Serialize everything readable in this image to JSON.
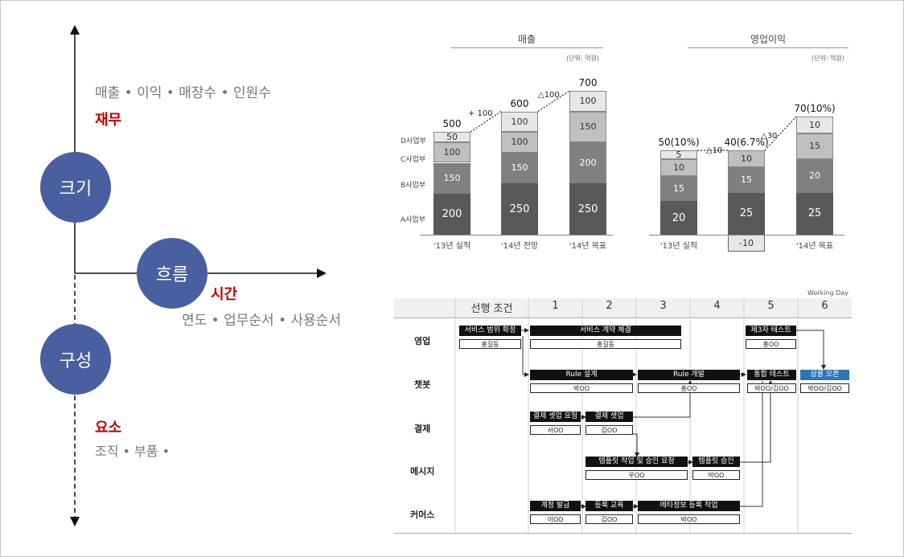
{
  "left": {
    "circles": [
      "크기",
      "흐름",
      "구성"
    ],
    "size_desc": "매출 • 이익 • 매장수 • 인원수",
    "size_label": "재무",
    "flow_label": "시간",
    "flow_desc": "연도 • 업무순서 • 사용순서",
    "comp_label": "요소",
    "comp_desc": "조직 • 부품 •"
  },
  "chart_data": [
    {
      "type": "bar",
      "title": "매출",
      "unit": "(단위: 억원)",
      "categories": [
        "'13년 실적",
        "'14년 전망",
        "'14년 목표"
      ],
      "series": [
        {
          "name": "A사업부",
          "values": [
            200,
            250,
            250
          ],
          "color": "#595959"
        },
        {
          "name": "B사업부",
          "values": [
            150,
            150,
            200
          ],
          "color": "#808080"
        },
        {
          "name": "C사업부",
          "values": [
            100,
            100,
            150
          ],
          "color": "#bfbfbf"
        },
        {
          "name": "D사업부",
          "values": [
            50,
            100,
            100
          ],
          "color": "#e7e7e7"
        }
      ],
      "totals": [
        "500",
        "600",
        "700"
      ],
      "deltas": [
        "+ 100",
        "△100"
      ]
    },
    {
      "type": "bar",
      "title": "영업이익",
      "unit": "(단위: 억원)",
      "categories": [
        "'13년 실적",
        "",
        "'14년 목표"
      ],
      "series": [
        {
          "values": [
            20,
            25,
            25
          ],
          "color": "#595959"
        },
        {
          "values": [
            15,
            15,
            20
          ],
          "color": "#808080"
        },
        {
          "values": [
            10,
            10,
            15
          ],
          "color": "#bfbfbf"
        },
        {
          "values": [
            5,
            -10,
            10
          ],
          "color": "#e7e7e7"
        }
      ],
      "totals": [
        "50(10%)",
        "40(6.7%)",
        "70(10%)"
      ],
      "deltas": [
        "△10",
        "△30"
      ]
    }
  ],
  "schedule": {
    "working_day": "Working Day",
    "headers": [
      "선행 조건",
      "1",
      "2",
      "3",
      "4",
      "5",
      "6"
    ],
    "rows": [
      "영업",
      "챗봇",
      "결제",
      "메시지",
      "커머스"
    ],
    "tasks": [
      {
        "label": "서비스 범위 확정",
        "owner": "홍길동"
      },
      {
        "label": "서비스 계약 체결",
        "owner": "홍길동"
      },
      {
        "label": "제3자 테스트",
        "owner": "홍OO"
      },
      {
        "label": "Rule 설계",
        "owner": "박OO"
      },
      {
        "label": "Rule 개발",
        "owner": "홍OO"
      },
      {
        "label": "통합 테스트",
        "owner": "박OO/김OO"
      },
      {
        "label": "상용 오픈",
        "owner": "박OO/김OO"
      },
      {
        "label": "결제 셋업 요청",
        "owner": "서OO"
      },
      {
        "label": "결제 셋업",
        "owner": "김OO"
      },
      {
        "label": "템플릿 작업 및 승인 요청",
        "owner": "우OO"
      },
      {
        "label": "템플릿 승인",
        "owner": "박OO"
      },
      {
        "label": "계정 발급",
        "owner": "이OO"
      },
      {
        "label": "등록 교육",
        "owner": "김OO"
      },
      {
        "label": "메타정보 등록 작업",
        "owner": "박OO"
      }
    ]
  }
}
